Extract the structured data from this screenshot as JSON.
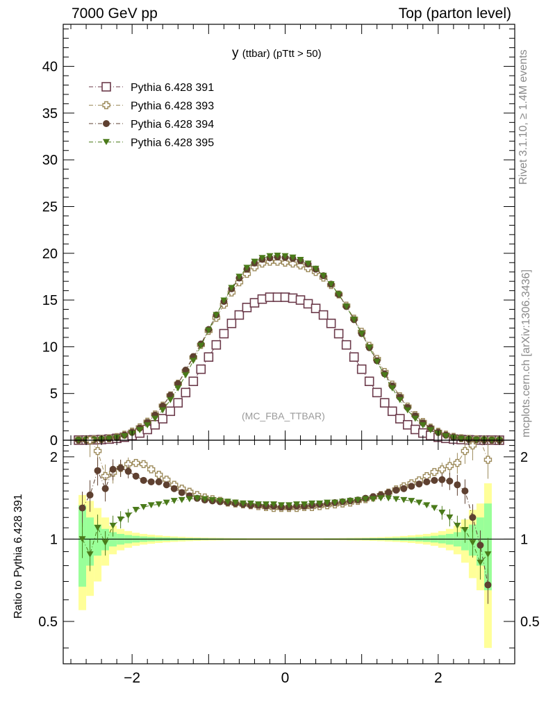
{
  "header": {
    "left": "7000 GeV pp",
    "right": "Top (parton level)"
  },
  "side_labels": {
    "rivet": "Rivet 3.1.10, ≥ 1.4M events",
    "mcplots": "mcplots.cern.ch [arXiv:1306.3436]"
  },
  "plot_title": {
    "main": "y",
    "sub": "(ttbar) (pTtt > 50)"
  },
  "watermark": "(MC_FBA_TTBAR)",
  "colors": {
    "s391": "#6b3a4a",
    "s393": "#9c8a5a",
    "s394": "#5e4030",
    "s395": "#4a7a1a",
    "band_yellow": "#ffff99",
    "band_green": "#99ff99"
  },
  "chart_data": [
    {
      "type": "scatter",
      "panel": "main",
      "xlim": [
        -2.9,
        3.0
      ],
      "ylim": [
        0,
        44.5
      ],
      "yticks": [
        0,
        5,
        10,
        15,
        20,
        25,
        30,
        35,
        40
      ],
      "legend_placement": "top-left",
      "x": [
        -2.7,
        -2.6,
        -2.5,
        -2.4,
        -2.3,
        -2.2,
        -2.1,
        -2.0,
        -1.9,
        -1.8,
        -1.7,
        -1.6,
        -1.5,
        -1.4,
        -1.3,
        -1.2,
        -1.1,
        -1.0,
        -0.9,
        -0.8,
        -0.7,
        -0.6,
        -0.5,
        -0.4,
        -0.3,
        -0.2,
        -0.1,
        0.0,
        0.1,
        0.2,
        0.3,
        0.4,
        0.5,
        0.6,
        0.7,
        0.8,
        0.9,
        1.0,
        1.1,
        1.2,
        1.3,
        1.4,
        1.5,
        1.6,
        1.7,
        1.8,
        1.9,
        2.0,
        2.1,
        2.2,
        2.3,
        2.4,
        2.5,
        2.6,
        2.7,
        2.8
      ],
      "series": [
        {
          "name": "Pythia 6.428 391",
          "marker": "open-square",
          "values": [
            0.01,
            0.02,
            0.04,
            0.07,
            0.12,
            0.2,
            0.32,
            0.5,
            0.77,
            1.15,
            1.65,
            2.3,
            3.1,
            4.0,
            5.1,
            6.3,
            7.6,
            8.9,
            10.2,
            11.4,
            12.5,
            13.4,
            14.2,
            14.7,
            15.1,
            15.3,
            15.3,
            15.3,
            15.2,
            15.0,
            14.6,
            14.1,
            13.4,
            12.5,
            11.4,
            10.2,
            8.9,
            7.6,
            6.3,
            5.1,
            4.0,
            3.1,
            2.3,
            1.65,
            1.15,
            0.77,
            0.5,
            0.32,
            0.2,
            0.12,
            0.07,
            0.04,
            0.02,
            0.01,
            0.01,
            0.0
          ]
        },
        {
          "name": "Pythia 6.428 393",
          "marker": "open-cross",
          "values": [
            0.03,
            0.05,
            0.09,
            0.13,
            0.2,
            0.34,
            0.59,
            0.92,
            1.38,
            1.98,
            2.75,
            3.7,
            4.8,
            6.05,
            7.4,
            8.85,
            10.2,
            11.7,
            13.1,
            14.5,
            15.8,
            16.9,
            17.8,
            18.5,
            18.9,
            19.1,
            19.1,
            19.0,
            18.9,
            18.7,
            18.4,
            18.0,
            17.4,
            16.6,
            15.6,
            14.4,
            13.0,
            11.6,
            10.1,
            8.7,
            7.3,
            5.95,
            4.7,
            3.6,
            2.7,
            1.95,
            1.35,
            0.9,
            0.6,
            0.36,
            0.22,
            0.14,
            0.1,
            0.06,
            0.03,
            0.01
          ]
        },
        {
          "name": "Pythia 6.428 394",
          "marker": "filled-circle",
          "values": [
            0.02,
            0.03,
            0.06,
            0.11,
            0.19,
            0.3,
            0.55,
            0.85,
            1.3,
            1.9,
            2.68,
            3.65,
            4.8,
            6.05,
            7.5,
            8.95,
            10.3,
            11.85,
            13.4,
            14.85,
            16.2,
            17.35,
            18.3,
            18.95,
            19.35,
            19.5,
            19.6,
            19.55,
            19.45,
            19.2,
            18.85,
            18.3,
            17.6,
            16.7,
            15.6,
            14.3,
            12.9,
            11.4,
            9.9,
            8.5,
            7.1,
            5.8,
            4.6,
            3.5,
            2.6,
            1.85,
            1.3,
            0.85,
            0.55,
            0.33,
            0.19,
            0.11,
            0.06,
            0.03,
            0.02,
            0.01
          ]
        },
        {
          "name": "Pythia 6.428 395",
          "marker": "filled-triangle-down",
          "values": [
            0.01,
            0.02,
            0.04,
            0.08,
            0.15,
            0.26,
            0.43,
            0.7,
            1.08,
            1.6,
            2.3,
            3.2,
            4.3,
            5.55,
            6.95,
            8.5,
            10.1,
            11.75,
            13.4,
            14.95,
            16.3,
            17.5,
            18.45,
            19.1,
            19.5,
            19.7,
            19.75,
            19.7,
            19.55,
            19.3,
            18.9,
            18.35,
            17.6,
            16.7,
            15.6,
            14.3,
            12.9,
            11.4,
            9.9,
            8.4,
            6.95,
            5.55,
            4.3,
            3.2,
            2.3,
            1.6,
            1.08,
            0.7,
            0.43,
            0.26,
            0.15,
            0.08,
            0.04,
            0.02,
            0.01,
            0.0
          ]
        }
      ]
    },
    {
      "type": "scatter",
      "panel": "ratio",
      "ylabel": "Ratio to Pythia 6.428 391",
      "xlim": [
        -2.9,
        3.0
      ],
      "ylim": [
        0.35,
        2.3
      ],
      "xticks": [
        -2,
        0,
        2
      ],
      "yticks": [
        0.5,
        1,
        2
      ],
      "ylog": true,
      "reference_line": 1,
      "x": [
        -2.65,
        -2.55,
        -2.45,
        -2.35,
        -2.25,
        -2.15,
        -2.05,
        -1.95,
        -1.85,
        -1.75,
        -1.65,
        -1.55,
        -1.45,
        -1.35,
        -1.25,
        -1.15,
        -1.05,
        -0.95,
        -0.85,
        -0.75,
        -0.65,
        -0.55,
        -0.45,
        -0.35,
        -0.25,
        -0.15,
        -0.05,
        0.05,
        0.15,
        0.25,
        0.35,
        0.45,
        0.55,
        0.65,
        0.75,
        0.85,
        0.95,
        1.05,
        1.15,
        1.25,
        1.35,
        1.45,
        1.55,
        1.65,
        1.75,
        1.85,
        1.95,
        2.05,
        2.15,
        2.25,
        2.35,
        2.45,
        2.55,
        2.65
      ],
      "band": {
        "yellow_half": [
          0.45,
          0.38,
          0.3,
          0.2,
          0.12,
          0.09,
          0.07,
          0.055,
          0.045,
          0.038,
          0.032,
          0.027,
          0.023,
          0.02,
          0.017,
          0.015,
          0.013,
          0.012,
          0.011,
          0.01,
          0.009,
          0.009,
          0.008,
          0.008,
          0.008,
          0.008,
          0.008,
          0.008,
          0.008,
          0.008,
          0.008,
          0.008,
          0.009,
          0.009,
          0.01,
          0.011,
          0.012,
          0.013,
          0.015,
          0.017,
          0.02,
          0.023,
          0.027,
          0.032,
          0.038,
          0.045,
          0.055,
          0.07,
          0.09,
          0.12,
          0.18,
          0.28,
          0.35,
          0.6
        ],
        "green_half": [
          0.33,
          0.2,
          0.13,
          0.09,
          0.06,
          0.045,
          0.035,
          0.028,
          0.023,
          0.019,
          0.016,
          0.014,
          0.012,
          0.01,
          0.009,
          0.008,
          0.007,
          0.006,
          0.006,
          0.005,
          0.005,
          0.005,
          0.004,
          0.004,
          0.004,
          0.004,
          0.004,
          0.004,
          0.004,
          0.004,
          0.004,
          0.004,
          0.005,
          0.005,
          0.005,
          0.006,
          0.006,
          0.007,
          0.008,
          0.009,
          0.01,
          0.012,
          0.014,
          0.016,
          0.019,
          0.023,
          0.028,
          0.035,
          0.045,
          0.06,
          0.09,
          0.13,
          0.2,
          0.35
        ]
      },
      "series": [
        {
          "name": "Pythia 6.428 393",
          "values": [
            2.5,
            2.3,
            2.1,
            1.7,
            1.75,
            1.82,
            1.88,
            1.9,
            1.88,
            1.8,
            1.72,
            1.65,
            1.58,
            1.53,
            1.49,
            1.45,
            1.42,
            1.4,
            1.38,
            1.36,
            1.35,
            1.34,
            1.33,
            1.32,
            1.31,
            1.3,
            1.3,
            1.3,
            1.3,
            1.31,
            1.31,
            1.32,
            1.33,
            1.34,
            1.35,
            1.36,
            1.38,
            1.4,
            1.42,
            1.45,
            1.48,
            1.52,
            1.56,
            1.6,
            1.64,
            1.7,
            1.76,
            1.8,
            1.85,
            1.9,
            2.1,
            2.2,
            2.35,
            1.95
          ]
        },
        {
          "name": "Pythia 6.428 394",
          "values": [
            1.3,
            1.45,
            1.78,
            1.53,
            1.8,
            1.82,
            1.77,
            1.7,
            1.64,
            1.62,
            1.62,
            1.58,
            1.53,
            1.48,
            1.44,
            1.41,
            1.39,
            1.38,
            1.37,
            1.36,
            1.35,
            1.34,
            1.33,
            1.33,
            1.32,
            1.32,
            1.31,
            1.31,
            1.32,
            1.32,
            1.33,
            1.34,
            1.35,
            1.36,
            1.37,
            1.38,
            1.39,
            1.41,
            1.43,
            1.45,
            1.48,
            1.51,
            1.53,
            1.56,
            1.59,
            1.62,
            1.64,
            1.65,
            1.63,
            1.58,
            1.5,
            1.2,
            0.95,
            0.68
          ]
        },
        {
          "name": "Pythia 6.428 395",
          "values": [
            1.0,
            0.88,
            1.1,
            0.97,
            1.12,
            1.18,
            1.22,
            1.28,
            1.31,
            1.33,
            1.34,
            1.36,
            1.38,
            1.39,
            1.4,
            1.41,
            1.4,
            1.39,
            1.38,
            1.37,
            1.36,
            1.35,
            1.35,
            1.34,
            1.34,
            1.34,
            1.33,
            1.33,
            1.34,
            1.34,
            1.35,
            1.35,
            1.36,
            1.36,
            1.37,
            1.38,
            1.39,
            1.4,
            1.4,
            1.41,
            1.41,
            1.4,
            1.39,
            1.38,
            1.36,
            1.33,
            1.3,
            1.25,
            1.2,
            1.12,
            1.08,
            0.97,
            0.82,
            0.88
          ]
        }
      ]
    }
  ]
}
